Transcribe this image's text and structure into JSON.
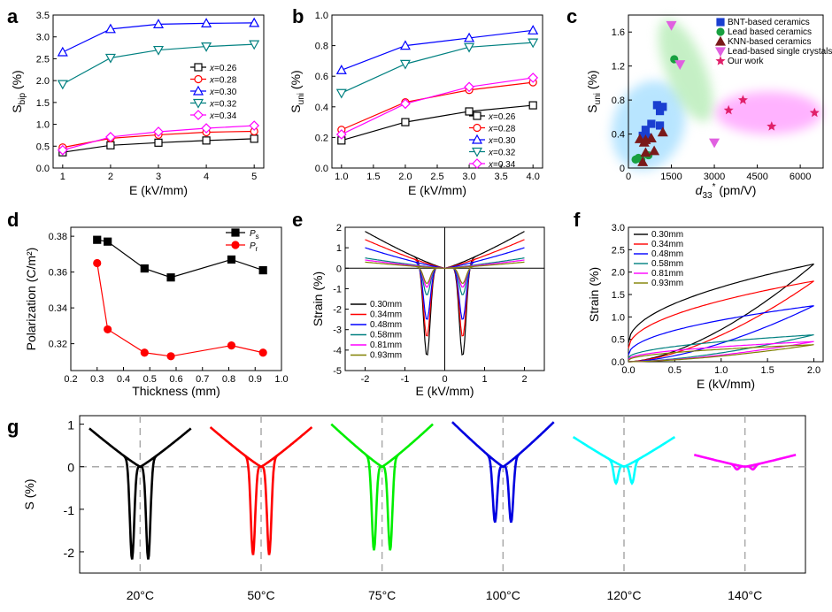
{
  "chart_data": [
    {
      "panel": "a",
      "type": "line",
      "xlabel": "E (kV/mm)",
      "ylabel": "S_bip (%)",
      "xlim": [
        0.8,
        5.2
      ],
      "ylim": [
        0,
        3.5
      ],
      "xticks": [
        1,
        2,
        3,
        4,
        5
      ],
      "yticks": [
        0,
        0.5,
        1.0,
        1.5,
        2.0,
        2.5,
        3.0,
        3.5
      ],
      "ytick_labels": [
        "0.0",
        "0.5",
        "1.0",
        "1.5",
        "2.0",
        "2.5",
        "3.0",
        "3.5"
      ],
      "x": [
        1,
        2,
        3,
        4,
        5
      ],
      "series": [
        {
          "name": "x=0.26",
          "color": "#000000",
          "marker": "square",
          "values": [
            0.36,
            0.52,
            0.58,
            0.63,
            0.67
          ]
        },
        {
          "name": "x=0.28",
          "color": "#ff0000",
          "marker": "circle",
          "values": [
            0.47,
            0.68,
            0.76,
            0.82,
            0.84
          ]
        },
        {
          "name": "x=0.30",
          "color": "#0000ff",
          "marker": "triangle",
          "values": [
            2.65,
            3.18,
            3.29,
            3.31,
            3.32
          ]
        },
        {
          "name": "x=0.32",
          "color": "#008080",
          "marker": "tri-down",
          "values": [
            1.92,
            2.52,
            2.7,
            2.78,
            2.83
          ]
        },
        {
          "name": "x=0.34",
          "color": "#ff00ff",
          "marker": "diamond",
          "values": [
            0.41,
            0.71,
            0.83,
            0.91,
            0.97
          ]
        }
      ]
    },
    {
      "panel": "b",
      "type": "line",
      "xlabel": "E (kV/mm)",
      "ylabel": "S_uni (%)",
      "xlim": [
        0.85,
        4.15
      ],
      "ylim": [
        0,
        1.0
      ],
      "xticks": [
        1.0,
        1.5,
        2.0,
        2.5,
        3.0,
        3.5,
        4.0
      ],
      "yticks": [
        0,
        0.2,
        0.4,
        0.6,
        0.8,
        1.0
      ],
      "xtick_labels": [
        "1.0",
        "1.5",
        "2.0",
        "2.5",
        "3.0",
        "3.5",
        "4.0"
      ],
      "ytick_labels": [
        "0.0",
        "0.2",
        "0.4",
        "0.6",
        "0.8",
        "1.0"
      ],
      "x": [
        1,
        2,
        3,
        4
      ],
      "series": [
        {
          "name": "x=0.26",
          "color": "#000000",
          "marker": "square",
          "values": [
            0.18,
            0.3,
            0.37,
            0.41
          ]
        },
        {
          "name": "x=0.28",
          "color": "#ff0000",
          "marker": "circle",
          "values": [
            0.25,
            0.43,
            0.51,
            0.56
          ]
        },
        {
          "name": "x=0.30",
          "color": "#0000ff",
          "marker": "triangle",
          "values": [
            0.64,
            0.8,
            0.85,
            0.9
          ]
        },
        {
          "name": "x=0.32",
          "color": "#008080",
          "marker": "tri-down",
          "values": [
            0.49,
            0.68,
            0.79,
            0.82
          ]
        },
        {
          "name": "x=0.34",
          "color": "#ff00ff",
          "marker": "diamond",
          "values": [
            0.22,
            0.42,
            0.53,
            0.59
          ]
        }
      ]
    },
    {
      "panel": "c",
      "type": "scatter",
      "xlabel_main": "d",
      "xlabel_sub": "33",
      "xlabel_sup": "*",
      "xlabel_tail": " (pm/V)",
      "ylabel": "S_uni (%)",
      "xlim": [
        0,
        6800
      ],
      "ylim": [
        0,
        1.8
      ],
      "xticks": [
        0,
        1500,
        3000,
        4500,
        6000
      ],
      "yticks": [
        0,
        0.4,
        0.8,
        1.2,
        1.6
      ],
      "ytick_labels": [
        "0",
        "0.4",
        "0.8",
        "1.2",
        "1.6"
      ],
      "series": [
        {
          "name": "BNT-based ceramics",
          "color": "#1a3fd0",
          "marker": "square",
          "points": [
            [
              500,
              0.38
            ],
            [
              600,
              0.45
            ],
            [
              650,
              0.36
            ],
            [
              800,
              0.52
            ],
            [
              1000,
              0.74
            ],
            [
              1100,
              0.67
            ],
            [
              1200,
              0.72
            ],
            [
              1100,
              0.5
            ]
          ]
        },
        {
          "name": "Lead based ceramics",
          "color": "#18a040",
          "marker": "circle",
          "points": [
            [
              250,
              0.1
            ],
            [
              350,
              0.12
            ],
            [
              450,
              0.1
            ],
            [
              700,
              0.15
            ],
            [
              1600,
              1.28
            ]
          ]
        },
        {
          "name": "KNN-based ceramics",
          "color": "#7a1a1a",
          "marker": "triangle",
          "points": [
            [
              400,
              0.34
            ],
            [
              550,
              0.3
            ],
            [
              600,
              0.33
            ],
            [
              800,
              0.35
            ],
            [
              900,
              0.2
            ],
            [
              1200,
              0.42
            ],
            [
              500,
              0.07
            ],
            [
              600,
              0.18
            ]
          ]
        },
        {
          "name": "Lead-based single crystals",
          "color": "#e060e0",
          "marker": "tri-down",
          "points": [
            [
              1500,
              1.68
            ],
            [
              1800,
              1.22
            ],
            [
              3000,
              0.3
            ]
          ]
        },
        {
          "name": "Our work",
          "color": "#e0206a",
          "marker": "star",
          "points": [
            [
              3500,
              0.68
            ],
            [
              4000,
              0.8
            ],
            [
              5000,
              0.49
            ],
            [
              6500,
              0.65
            ]
          ]
        }
      ]
    },
    {
      "panel": "d",
      "type": "line",
      "xlabel": "Thickness (mm)",
      "ylabel": "Polarization (C/m²)",
      "xlim": [
        0.2,
        1.0
      ],
      "ylim": [
        0.305,
        0.385
      ],
      "xticks": [
        0.2,
        0.3,
        0.4,
        0.5,
        0.6,
        0.7,
        0.8,
        0.9,
        1.0
      ],
      "yticks": [
        0.32,
        0.34,
        0.36,
        0.38
      ],
      "xtick_labels": [
        "0.2",
        "0.3",
        "0.4",
        "0.5",
        "0.6",
        "0.7",
        "0.8",
        "0.9",
        "1.0"
      ],
      "ytick_labels": [
        "0.32",
        "0.34",
        "0.36",
        "0.38"
      ],
      "x": [
        0.3,
        0.34,
        0.48,
        0.58,
        0.81,
        0.93
      ],
      "series": [
        {
          "name": "P",
          "sub": "s",
          "color": "#000000",
          "marker": "square",
          "values": [
            0.378,
            0.377,
            0.362,
            0.357,
            0.367,
            0.361
          ]
        },
        {
          "name": "P",
          "sub": "r",
          "color": "#ff0000",
          "marker": "circle",
          "values": [
            0.365,
            0.328,
            0.315,
            0.313,
            0.319,
            0.315
          ]
        }
      ]
    },
    {
      "panel": "e",
      "type": "line",
      "xlabel": "E (kV/mm)",
      "ylabel": "Strain (%)",
      "xlim": [
        -2.5,
        2.5
      ],
      "ylim": [
        -5,
        2
      ],
      "xticks": [
        -2,
        -1,
        0,
        1,
        2
      ],
      "yticks": [
        -5,
        -4,
        -3,
        -2,
        -1,
        0,
        1,
        2
      ],
      "field_max": 2.0,
      "coercive_field": 0.45,
      "series": [
        {
          "name": "0.30mm",
          "color": "#000000",
          "max": 1.8,
          "min": -4.6
        },
        {
          "name": "0.34mm",
          "color": "#ff0000",
          "max": 1.4,
          "min": -3.6
        },
        {
          "name": "0.48mm",
          "color": "#0000ff",
          "max": 1.0,
          "min": -2.7
        },
        {
          "name": "0.58mm",
          "color": "#008080",
          "max": 0.5,
          "min": -1.4
        },
        {
          "name": "0.81mm",
          "color": "#ff00ff",
          "max": 0.4,
          "min": -1.0
        },
        {
          "name": "0.93mm",
          "color": "#808000",
          "max": 0.3,
          "min": -0.8
        }
      ]
    },
    {
      "panel": "f",
      "type": "line",
      "xlabel": "E (kV/mm)",
      "ylabel": "Strain (%)",
      "xlim": [
        0,
        2.1
      ],
      "ylim": [
        0,
        3.0
      ],
      "xticks": [
        0,
        0.5,
        1.0,
        1.5,
        2.0
      ],
      "yticks": [
        0,
        0.5,
        1.0,
        1.5,
        2.0,
        2.5,
        3.0
      ],
      "xtick_labels": [
        "0.0",
        "0.5",
        "1.0",
        "1.5",
        "2.0"
      ],
      "ytick_labels": [
        "0.0",
        "0.5",
        "1.0",
        "1.5",
        "2.0",
        "2.5",
        "3.0"
      ],
      "field_max": 2.0,
      "series": [
        {
          "name": "0.30mm",
          "color": "#000000",
          "max": 2.18,
          "start": 0.42
        },
        {
          "name": "0.34mm",
          "color": "#ff0000",
          "max": 1.8,
          "start": 0.3
        },
        {
          "name": "0.48mm",
          "color": "#0000ff",
          "max": 1.25,
          "start": 0.15
        },
        {
          "name": "0.58mm",
          "color": "#008080",
          "max": 0.6,
          "start": 0.08
        },
        {
          "name": "0.81mm",
          "color": "#ff00ff",
          "max": 0.45,
          "start": 0.05
        },
        {
          "name": "0.93mm",
          "color": "#808000",
          "max": 0.38,
          "start": 0.03
        }
      ]
    },
    {
      "panel": "g",
      "type": "line",
      "ylabel": "S (%)",
      "ylim": [
        -2.5,
        1.2
      ],
      "yticks": [
        -2,
        -1,
        0,
        1
      ],
      "series": [
        {
          "name": "20°C",
          "color": "#000000",
          "max": 0.9,
          "min": -2.3
        },
        {
          "name": "50°C",
          "color": "#ff0000",
          "max": 0.93,
          "min": -2.2
        },
        {
          "name": "75°C",
          "color": "#00ee00",
          "max": 1.0,
          "min": -2.1
        },
        {
          "name": "100°C",
          "color": "#0000e0",
          "max": 1.05,
          "min": -1.45
        },
        {
          "name": "120°C",
          "color": "#00ffff",
          "max": 0.7,
          "min": -0.48
        },
        {
          "name": "140°C",
          "color": "#ff00ff",
          "max": 0.28,
          "min": -0.1
        }
      ]
    }
  ],
  "panel_labels": [
    "a",
    "b",
    "c",
    "d",
    "e",
    "f",
    "g"
  ]
}
